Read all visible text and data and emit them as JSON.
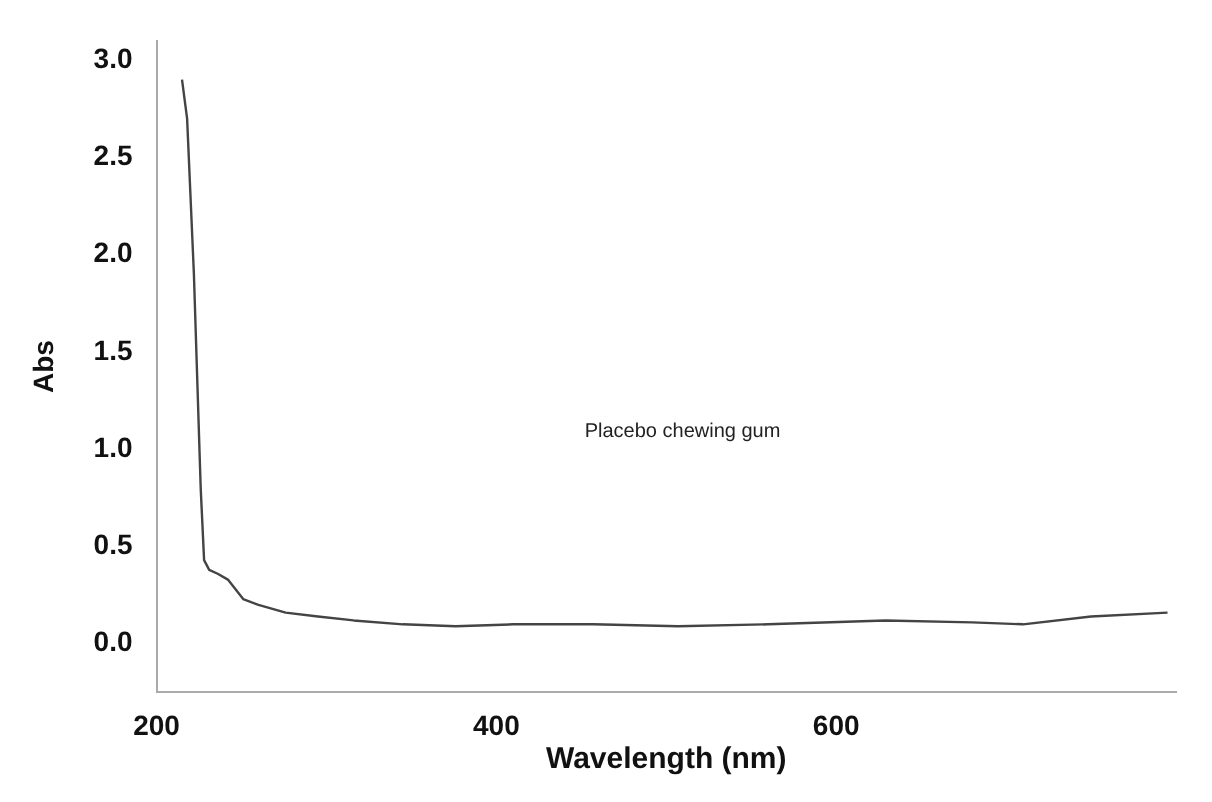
{
  "chart_data": {
    "type": "line",
    "xlabel": "Wavelength (nm)",
    "ylabel": "Abs",
    "annotations": [
      "Placebo chewing gum"
    ],
    "xlim": [
      200,
      800
    ],
    "xticks": [
      200,
      400,
      600
    ],
    "ylim": [
      -0.25,
      3.1
    ],
    "yticks": [
      {
        "value": 0,
        "label": "0.0"
      },
      {
        "value": 0.5,
        "label": "0.5"
      },
      {
        "value": 1,
        "label": "1.0"
      },
      {
        "value": 1.5,
        "label": "1.5"
      },
      {
        "value": 2,
        "label": "2.0"
      },
      {
        "value": 2.5,
        "label": "2.5"
      },
      {
        "value": 3,
        "label": "3.0"
      }
    ],
    "grid": false,
    "legend": false,
    "marker": "none",
    "line_style": "solid",
    "series": [
      {
        "color": "#444444",
        "x": [
          215,
          218,
          222,
          226,
          228,
          231,
          236,
          242,
          251,
          260,
          276,
          295,
          316,
          345,
          376,
          410,
          457,
          507,
          560,
          629,
          680,
          710,
          750,
          795
        ],
        "values": [
          2.9,
          2.7,
          1.9,
          0.8,
          0.43,
          0.38,
          0.36,
          0.33,
          0.23,
          0.2,
          0.16,
          0.14,
          0.12,
          0.1,
          0.09,
          0.1,
          0.1,
          0.09,
          0.1,
          0.12,
          0.11,
          0.1,
          0.14,
          0.16
        ]
      }
    ]
  }
}
